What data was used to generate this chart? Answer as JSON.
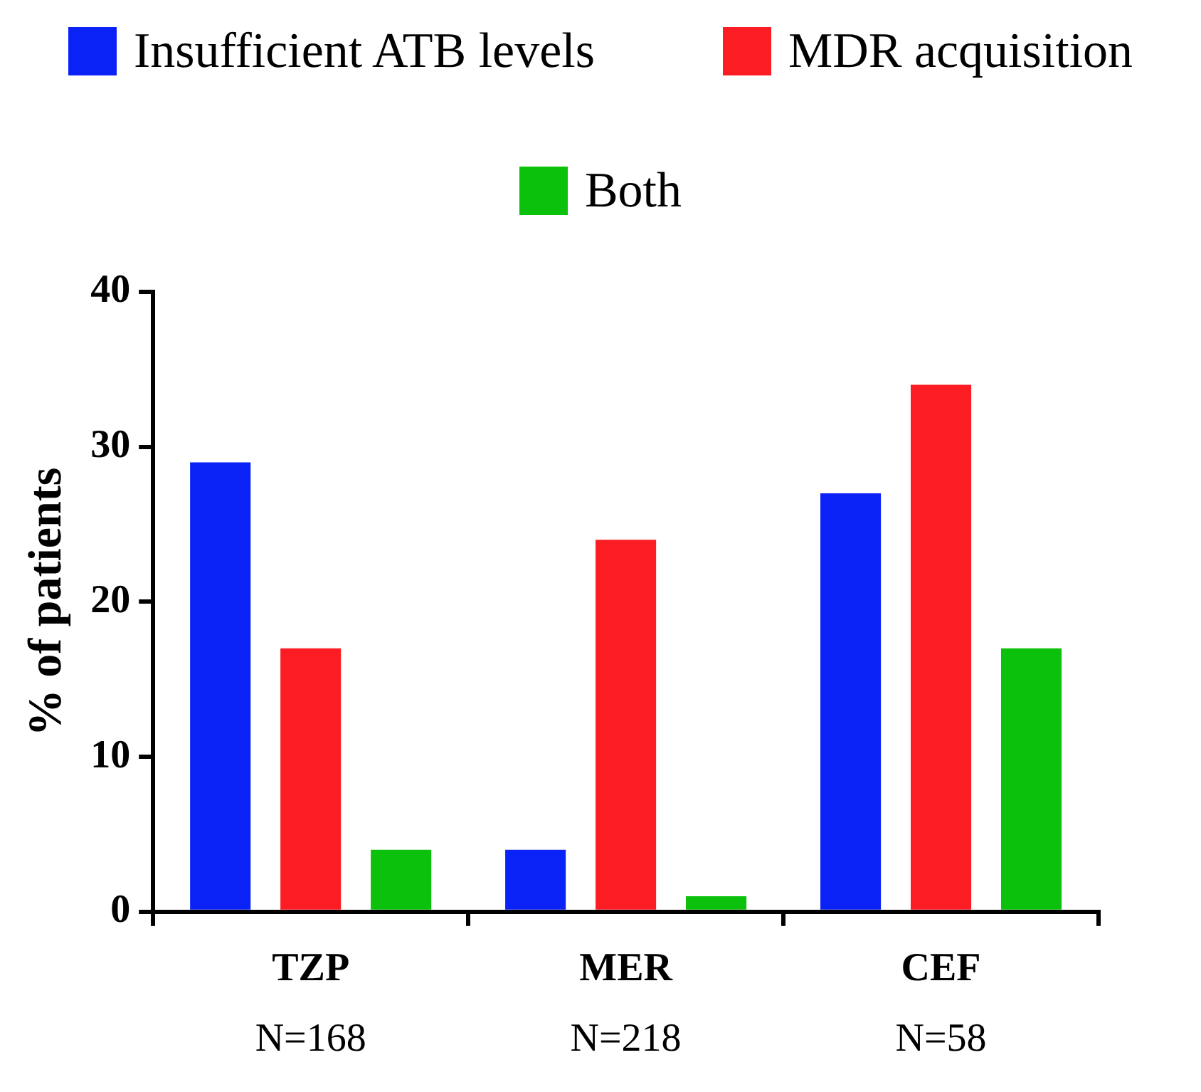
{
  "chart_data": {
    "type": "bar",
    "ylabel": "% of patients",
    "categories": [
      "TZP",
      "MER",
      "CEF"
    ],
    "series": [
      {
        "name": "Insufficient ATB levels",
        "color": "#0a22f5",
        "values": [
          29,
          4,
          27
        ]
      },
      {
        "name": "MDR acquisition",
        "color": "#fc1c24",
        "values": [
          17,
          24,
          34
        ]
      },
      {
        "name": "Both",
        "color": "#0cc10c",
        "values": [
          4,
          1,
          17
        ]
      }
    ],
    "ylim": [
      0,
      40
    ],
    "yticks": [
      0,
      10,
      20,
      30,
      40
    ],
    "grid": false,
    "legend": "top",
    "annotations": [
      "N=168",
      "N=218",
      "N=58"
    ]
  }
}
